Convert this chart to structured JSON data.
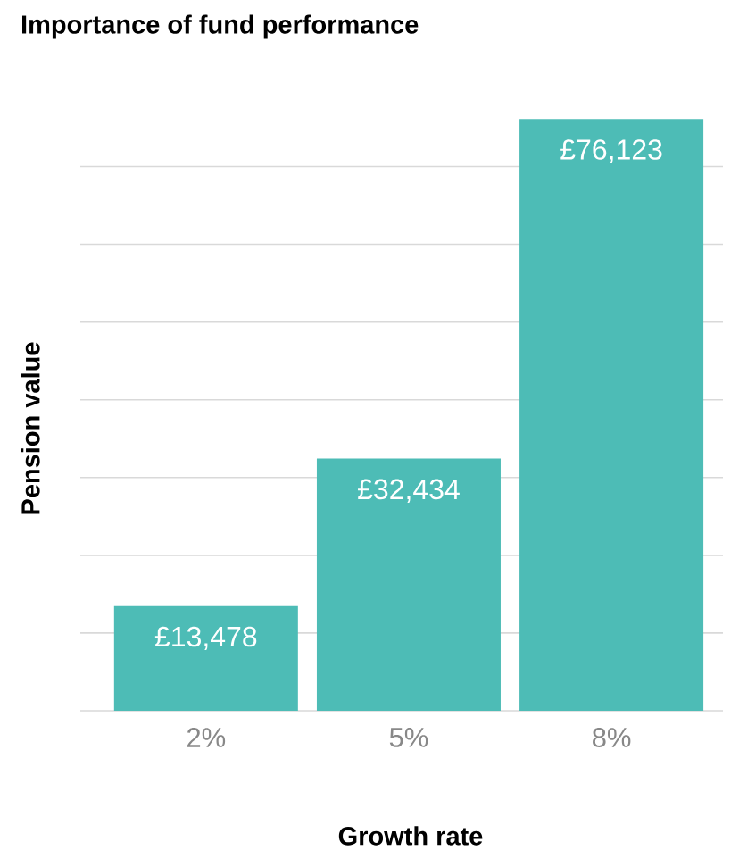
{
  "chart_data": {
    "type": "bar",
    "title": "Importance of fund performance",
    "xlabel": "Growth rate",
    "ylabel": "Pension value",
    "categories": [
      "2%",
      "5%",
      "8%"
    ],
    "values": [
      13478,
      32434,
      76123
    ],
    "value_labels": [
      "£13,478",
      "£32,434",
      "£76,123"
    ],
    "color": "#4dbcb6",
    "tick_labels": "x",
    "grid": "y"
  }
}
